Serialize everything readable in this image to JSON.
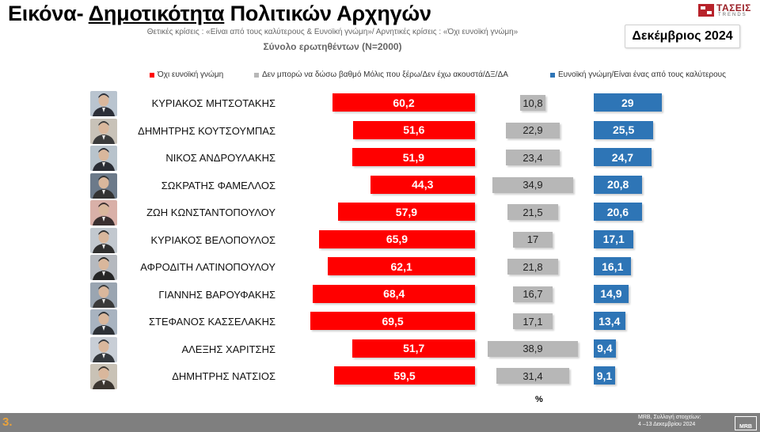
{
  "header": {
    "title_prefix": "Εικόνα- ",
    "title_underlined": "Δημοτικότητα",
    "title_suffix": " Πολιτικών Αρχηγών",
    "subtitle": "Θετικές κρίσεις : «Είναι από τους καλύτερους &  Ευνοϊκή γνώμη»/ Αρνητικές κρίσεις : «Όχι ευνοϊκή γνώμη»",
    "sample": "Σύνολο ερωτηθέντων (Ν=2000)",
    "date": "Δεκέμβριος 2024",
    "logo_text": "ΤΑΣΕΙΣ",
    "logo_subtext": "TRENDS"
  },
  "colors": {
    "negative": "#ff0000",
    "neutral": "#b7b7b7",
    "positive": "#2e75b6"
  },
  "chart_data": {
    "type": "bar",
    "orientation": "horizontal",
    "categories": [
      "ΚΥΡΙΑΚΟΣ ΜΗΤΣΟΤΑΚΗΣ",
      "ΔΗΜΗΤΡΗΣ ΚΟΥΤΣΟΥΜΠΑΣ",
      "ΝΙΚΟΣ ΑΝΔΡΟΥΛΑΚΗΣ",
      "ΣΩΚΡΑΤΗΣ ΦΑΜΕΛΛΟΣ",
      "ΖΩΗ ΚΩΝΣΤΑΝΤΟΠΟΥΛΟΥ",
      "ΚΥΡΙΑΚΟΣ ΒΕΛΟΠΟΥΛΟΣ",
      "ΑΦΡΟΔΙΤΗ ΛΑΤΙΝΟΠΟΥΛΟΥ",
      "ΓΙΑΝΝΗΣ ΒΑΡΟΥΦΑΚΗΣ",
      "ΣΤΕΦΑΝΟΣ ΚΑΣΣΕΛΑΚΗΣ",
      "ΑΛΕΞΗΣ ΧΑΡΙΤΣΗΣ",
      "ΔΗΜΗΤΡΗΣ ΝΑΤΣΙΟΣ"
    ],
    "series": [
      {
        "name": "Όχι ευνοϊκή γνώμη",
        "values": [
          "60,2",
          "51,6",
          "51,9",
          "44,3",
          "57,9",
          "65,9",
          "62,1",
          "68,4",
          "69,5",
          "51,7",
          "59,5"
        ]
      },
      {
        "name": "Δεν μπορώ να δώσω βαθμό Μόλις που ξέρω/Δεν έχω ακουστά/ΔΞ/ΔΑ",
        "values": [
          "10,8",
          "22,9",
          "23,4",
          "34,9",
          "21,5",
          "17",
          "21,8",
          "16,7",
          "17,1",
          "38,9",
          "31,4"
        ]
      },
      {
        "name": "Ευνοϊκή γνώμη/Είναι ένας από τους καλύτερους",
        "values": [
          "29",
          "25,5",
          "24,7",
          "20,8",
          "20,6",
          "17,1",
          "16,1",
          "14,9",
          "13,4",
          "9,4",
          "9,1"
        ]
      }
    ],
    "unit_label": "%"
  },
  "footer": {
    "page_number": "3.",
    "source": "MRB, Συλλογή στοιχείων:\n4 –13 Δεκεμβρίου 2024",
    "logo": "MRB"
  }
}
